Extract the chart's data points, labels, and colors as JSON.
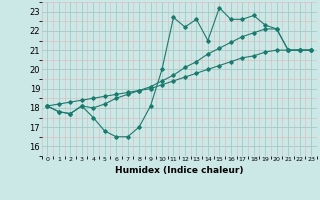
{
  "title": "",
  "xlabel": "Humidex (Indice chaleur)",
  "ylabel": "",
  "bg_color": "#cce8e6",
  "line_color": "#1a7a6e",
  "grid_major_color": "#a8c8c4",
  "grid_minor_color": "#ddb8b8",
  "xlim": [
    -0.5,
    23.5
  ],
  "ylim": [
    15.8,
    23.5
  ],
  "xticks": [
    0,
    1,
    2,
    3,
    4,
    5,
    6,
    7,
    8,
    9,
    10,
    11,
    12,
    13,
    14,
    15,
    16,
    17,
    18,
    19,
    20,
    21,
    22,
    23
  ],
  "yticks": [
    16,
    17,
    18,
    19,
    20,
    21,
    22,
    23
  ],
  "line1_x": [
    0,
    1,
    2,
    3,
    4,
    5,
    6,
    7,
    8,
    9,
    10,
    11,
    12,
    13,
    14,
    15,
    16,
    17,
    18,
    19,
    20,
    21,
    22,
    23
  ],
  "line1_y": [
    18.1,
    17.8,
    17.7,
    18.1,
    17.5,
    16.8,
    16.5,
    16.5,
    17.0,
    18.1,
    20.0,
    22.7,
    22.2,
    22.6,
    21.5,
    23.2,
    22.6,
    22.6,
    22.8,
    22.3,
    22.1,
    21.0,
    21.0,
    21.0
  ],
  "line2_x": [
    0,
    1,
    2,
    3,
    4,
    5,
    6,
    7,
    8,
    9,
    10,
    11,
    12,
    13,
    14,
    15,
    16,
    17,
    18,
    19,
    20,
    21,
    22,
    23
  ],
  "line2_y": [
    18.1,
    17.8,
    17.7,
    18.1,
    18.0,
    18.2,
    18.5,
    18.7,
    18.9,
    19.1,
    19.4,
    19.7,
    20.1,
    20.4,
    20.8,
    21.1,
    21.4,
    21.7,
    21.9,
    22.1,
    22.1,
    21.0,
    21.0,
    21.0
  ],
  "line3_x": [
    0,
    1,
    2,
    3,
    4,
    5,
    6,
    7,
    8,
    9,
    10,
    11,
    12,
    13,
    14,
    15,
    16,
    17,
    18,
    19,
    20,
    21,
    22,
    23
  ],
  "line3_y": [
    18.1,
    18.2,
    18.3,
    18.4,
    18.5,
    18.6,
    18.7,
    18.8,
    18.9,
    19.0,
    19.2,
    19.4,
    19.6,
    19.8,
    20.0,
    20.2,
    20.4,
    20.6,
    20.7,
    20.9,
    21.0,
    21.0,
    21.0,
    21.0
  ]
}
